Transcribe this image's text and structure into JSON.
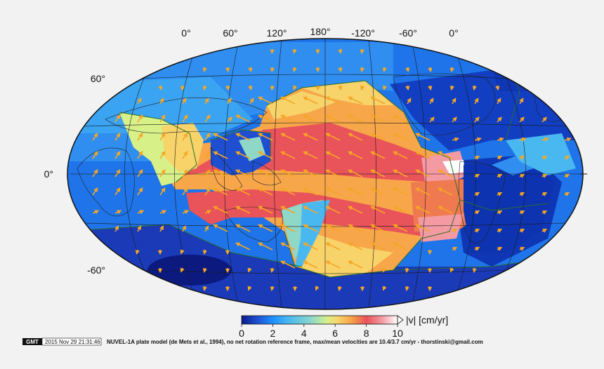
{
  "lon_labels": [
    "0°",
    "60°",
    "120°",
    "180°",
    "-120°",
    "-60°",
    "0°"
  ],
  "lat_labels": [
    "60°",
    "0°",
    "-60°"
  ],
  "colorbar": {
    "ticks": [
      "0",
      "2",
      "4",
      "6",
      "8",
      "10"
    ],
    "label": "|v| [cm/yr]",
    "colors": [
      "#0a1a8a",
      "#1f4fd0",
      "#1e90ff",
      "#4ab8f0",
      "#8fd8c8",
      "#d8f088",
      "#f7d36a",
      "#f7a64a",
      "#f07a50",
      "#e9535a",
      "#f49aa2",
      "#ffffff"
    ],
    "range": [
      0,
      10
    ]
  },
  "footer": {
    "logo": "GMT",
    "timestamp": "2015 Nov 29 21:31:46",
    "caption": "NUVEL-1A plate model (de Mets et al., 1994), no net rotation reference frame, max/mean velocities are 10.4/3.7 cm/yr - thorstinski@gmail.com"
  },
  "colors": {
    "arrow": "#f5a623",
    "ocean_slow": "#1e74e8",
    "grid": "#1a1a1a"
  }
}
